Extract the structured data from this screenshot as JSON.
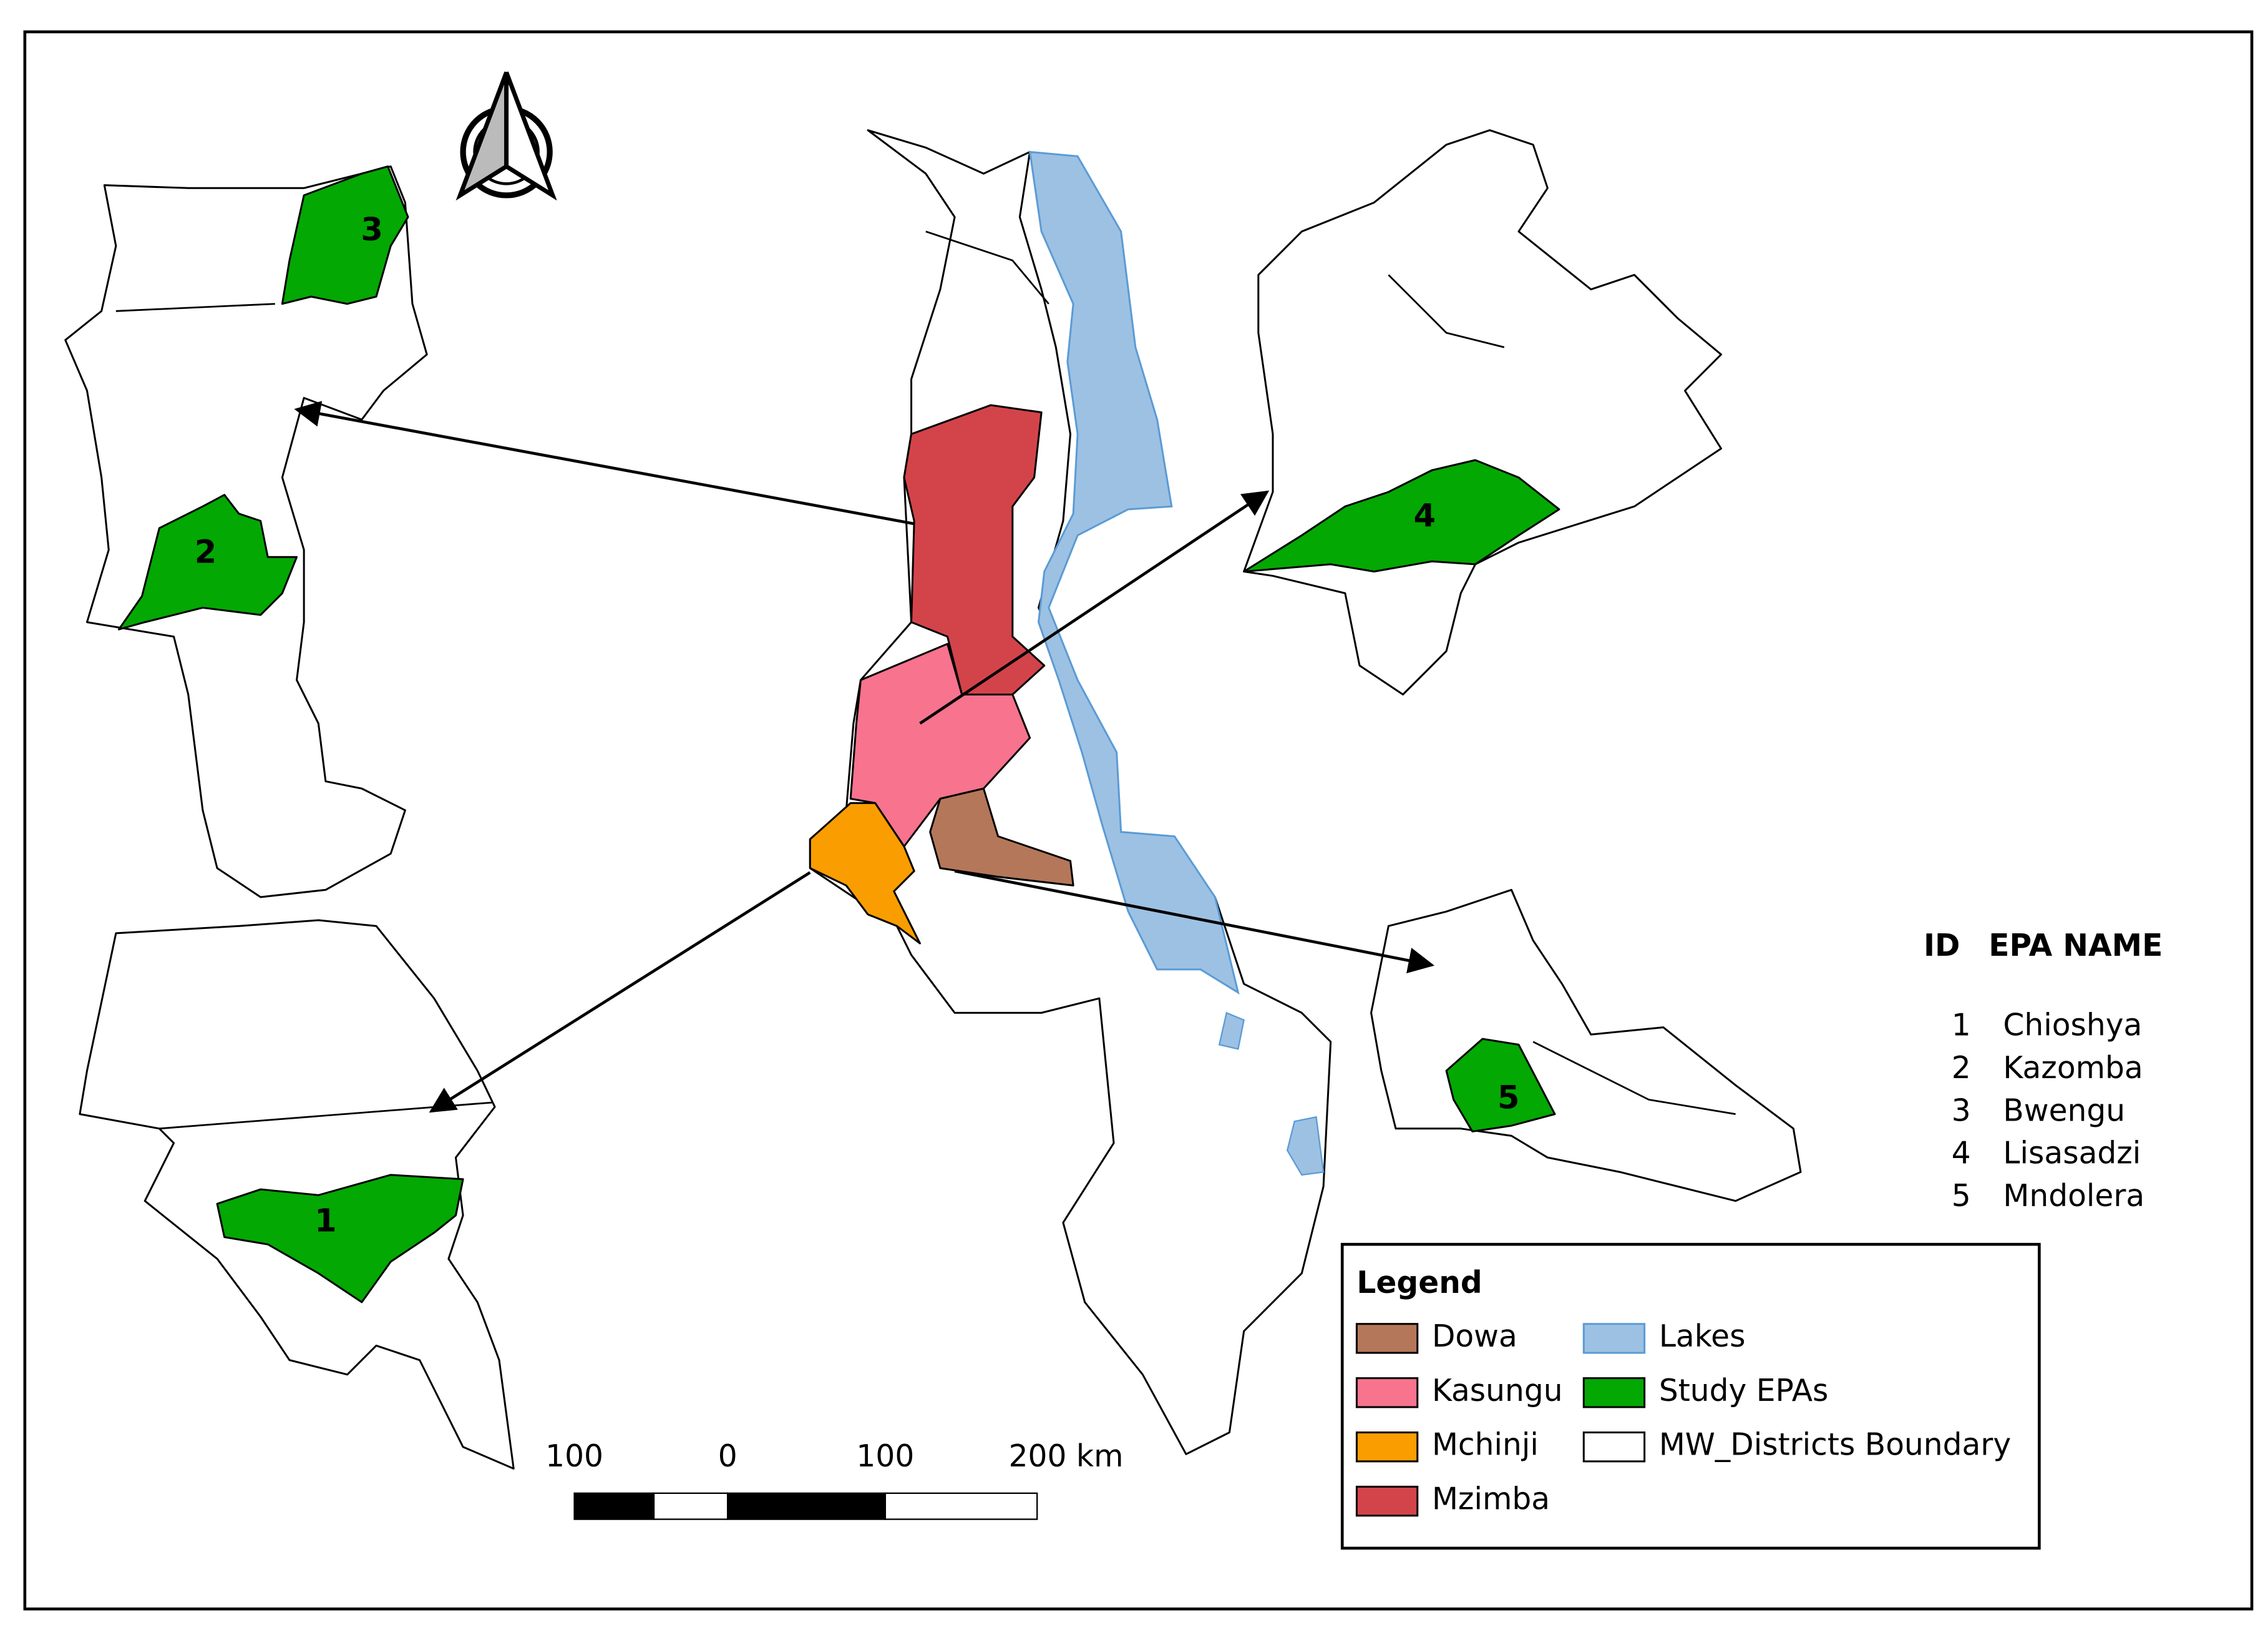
{
  "legend": {
    "title": "Legend",
    "items": [
      {
        "label": "Dowa",
        "color": "#b5775a"
      },
      {
        "label": "Kasungu",
        "color": "#f7738e"
      },
      {
        "label": "Mchinji",
        "color": "#f99d00"
      },
      {
        "label": "Mzimba",
        "color": "#d3444a"
      },
      {
        "label": "Lakes",
        "color": "#9dc1e3"
      },
      {
        "label": "Study EPAs",
        "color": "#03a803"
      },
      {
        "label": "MW_Districts Boundary",
        "color": "#ffffff"
      }
    ]
  },
  "epa_table": {
    "header": [
      "ID",
      "EPA NAME"
    ],
    "rows": [
      [
        "1",
        "Chioshya"
      ],
      [
        "2",
        "Kazomba"
      ],
      [
        "3",
        "Bwengu"
      ],
      [
        "4",
        "Lisasadzi"
      ],
      [
        "5",
        "Mndolera"
      ]
    ]
  },
  "scale_bar": {
    "labels": [
      "100",
      "0",
      "100",
      "200 km"
    ]
  },
  "map_labels": [
    "1",
    "2",
    "3",
    "4",
    "5"
  ]
}
